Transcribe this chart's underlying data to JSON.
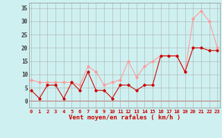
{
  "x": [
    0,
    1,
    2,
    3,
    4,
    5,
    6,
    7,
    8,
    9,
    10,
    11,
    12,
    13,
    14,
    15,
    16,
    17,
    18,
    19,
    20,
    21,
    22,
    23
  ],
  "wind_avg": [
    4,
    1,
    6,
    6,
    1,
    7,
    4,
    11,
    4,
    4,
    1,
    6,
    6,
    4,
    6,
    6,
    17,
    17,
    17,
    11,
    20,
    20,
    19,
    19
  ],
  "wind_gust": [
    8,
    7,
    7,
    7,
    7,
    7,
    6,
    13,
    11,
    6,
    7,
    8,
    15,
    9,
    13,
    15,
    17,
    17,
    17,
    11,
    31,
    34,
    30,
    20
  ],
  "bg_color": "#cff0f0",
  "grid_color": "#aaaaaa",
  "line_avg_color": "#cc0000",
  "line_gust_color": "#ff9999",
  "marker": "D",
  "marker_size": 1.8,
  "linewidth": 0.8,
  "xlabel": "Vent moyen/en rafales ( km/h )",
  "yticks": [
    0,
    5,
    10,
    15,
    20,
    25,
    30,
    35
  ],
  "xlim": [
    -0.3,
    23.3
  ],
  "ylim": [
    -2.5,
    37
  ],
  "figsize": [
    3.2,
    2.0
  ],
  "dpi": 100,
  "xlabel_fontsize": 6.5,
  "xtick_fontsize": 5.2,
  "ytick_fontsize": 5.5,
  "xlabel_color": "#cc0000",
  "xtick_color": "#cc0000",
  "ytick_color": "#333333"
}
